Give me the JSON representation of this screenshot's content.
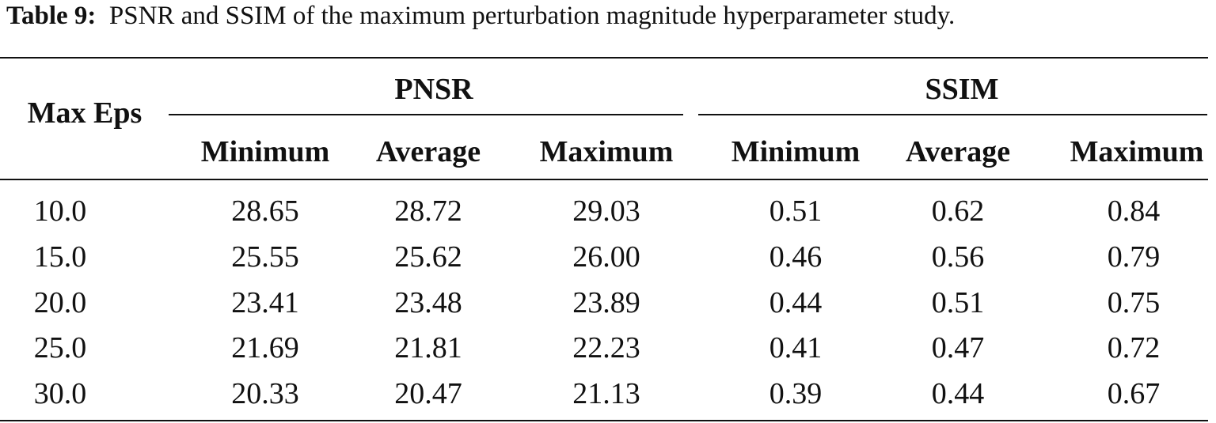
{
  "caption": {
    "label": "Table 9:",
    "text": "PSNR and SSIM of the maximum perturbation magnitude hyperparameter study."
  },
  "table": {
    "row_header": "Max Eps",
    "groups": [
      "PNSR",
      "SSIM"
    ],
    "subheaders": [
      "Minimum",
      "Average",
      "Maximum",
      "Minimum",
      "Average",
      "Maximum"
    ],
    "rows": [
      [
        "10.0",
        "28.65",
        "28.72",
        "29.03",
        "0.51",
        "0.62",
        "0.84"
      ],
      [
        "15.0",
        "25.55",
        "25.62",
        "26.00",
        "0.46",
        "0.56",
        "0.79"
      ],
      [
        "20.0",
        "23.41",
        "23.48",
        "23.89",
        "0.44",
        "0.51",
        "0.75"
      ],
      [
        "25.0",
        "21.69",
        "21.81",
        "22.23",
        "0.41",
        "0.47",
        "0.72"
      ],
      [
        "30.0",
        "20.33",
        "20.47",
        "21.13",
        "0.39",
        "0.44",
        "0.67"
      ]
    ]
  }
}
